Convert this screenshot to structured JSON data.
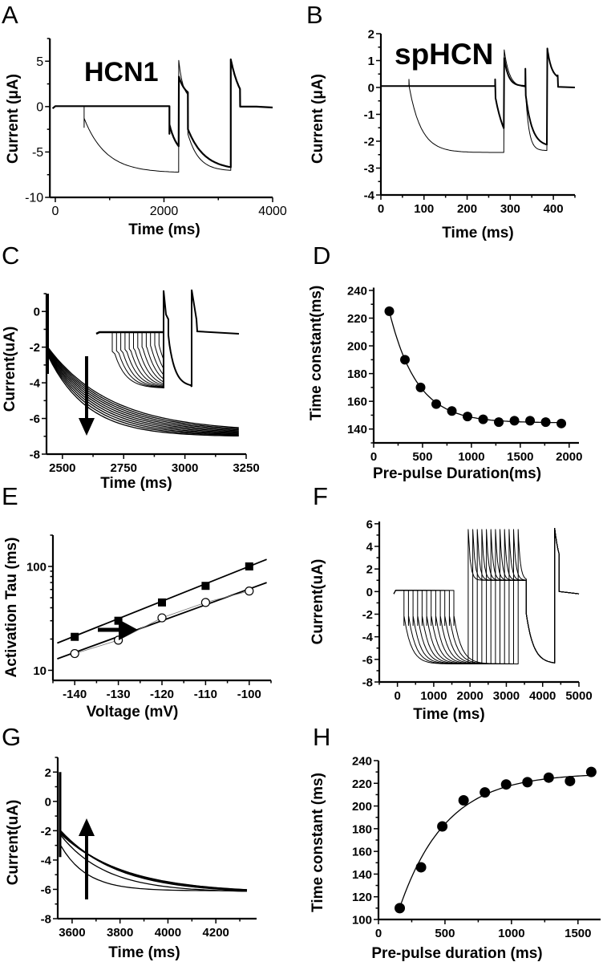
{
  "chart_data": [
    {
      "panel": "A",
      "type": "line",
      "annotation": "HCN1",
      "xlabel": "Time (ms)",
      "ylabel": "Current (μA)",
      "xlim": [
        -100,
        4000
      ],
      "ylim": [
        -10,
        7.5
      ],
      "yscale": "linear",
      "xticks": [
        "0",
        "2000",
        "4000"
      ],
      "xtick_values": [
        0,
        2000,
        4000
      ],
      "yticks": [
        "5",
        "0",
        "-5",
        "-10"
      ],
      "ytick_values": [
        5,
        0,
        -5,
        -10
      ],
      "grid": false
    },
    {
      "panel": "B",
      "type": "line",
      "annotation": "spHCN",
      "xlabel": "Time (ms)",
      "ylabel": "Current (μA)",
      "xlim": [
        0,
        450
      ],
      "ylim": [
        -4,
        2
      ],
      "yscale": "linear",
      "xticks": [
        "0",
        "100",
        "200",
        "300",
        "400"
      ],
      "xtick_values": [
        0,
        100,
        200,
        300,
        400
      ],
      "yticks": [
        "2",
        "1",
        "0",
        "-1",
        "-2",
        "-3",
        "-4"
      ],
      "ytick_values": [
        2,
        1,
        0,
        -1,
        -2,
        -3,
        -4
      ],
      "grid": false
    },
    {
      "panel": "C",
      "type": "line",
      "xlabel": "Time (ms)",
      "ylabel": "Current(uA)",
      "xlim": [
        2435,
        3250
      ],
      "ylim": [
        -8,
        1
      ],
      "yscale": "linear",
      "xticks": [
        "2500",
        "2750",
        "3000",
        "3250"
      ],
      "xtick_values": [
        2500,
        2750,
        3000,
        3250
      ],
      "yticks": [
        "0",
        "-2",
        "-4",
        "-6",
        "-8"
      ],
      "ytick_values": [
        0,
        -2,
        -4,
        -6,
        -8
      ],
      "arrow": "down",
      "inset": true,
      "grid": false
    },
    {
      "panel": "D",
      "type": "scatter",
      "xlabel": "Pre-pulse Duration(ms)",
      "ylabel": "Time constant(ms)",
      "xlim": [
        0,
        2100
      ],
      "ylim": [
        130,
        242
      ],
      "yscale": "linear",
      "xticks": [
        "0",
        "500",
        "1000",
        "1500",
        "2000"
      ],
      "xtick_values": [
        0,
        500,
        1000,
        1500,
        2000
      ],
      "yticks": [
        "240",
        "220",
        "200",
        "180",
        "160",
        "140"
      ],
      "ytick_values": [
        240,
        220,
        200,
        180,
        160,
        140
      ],
      "x": [
        160,
        320,
        480,
        640,
        800,
        960,
        1120,
        1280,
        1440,
        1600,
        1760,
        1920
      ],
      "y": [
        225,
        190,
        170,
        158,
        153,
        149,
        147,
        145,
        146,
        146,
        145,
        144
      ],
      "fit": "exponential",
      "grid": false
    },
    {
      "panel": "E",
      "type": "scatter",
      "xlabel": "Voltage (mV)",
      "ylabel": "Activation Tau (ms)",
      "xlim": [
        -145,
        -95
      ],
      "ylim": [
        8,
        200
      ],
      "yscale": "log",
      "xticks": [
        "-140",
        "-130",
        "-120",
        "-110",
        "-100"
      ],
      "xtick_values": [
        -140,
        -130,
        -120,
        -110,
        -100
      ],
      "yticks": [
        "100",
        "10"
      ],
      "ytick_values": [
        100,
        10
      ],
      "series": [
        {
          "marker": "filled-square",
          "x": [
            -140,
            -130,
            -120,
            -110,
            -100
          ],
          "y": [
            21,
            30,
            45,
            65,
            100
          ]
        },
        {
          "marker": "open-circle",
          "x": [
            -140,
            -130,
            -120,
            -110,
            -100
          ],
          "y": [
            14.5,
            19.5,
            32,
            45,
            58
          ]
        }
      ],
      "arrow": "right",
      "fit": "linear (log scale)",
      "grid": false
    },
    {
      "panel": "F",
      "type": "line",
      "xlabel": "Time (ms)",
      "ylabel": "Current(uA)",
      "xlim": [
        -500,
        5000
      ],
      "ylim": [
        -8,
        6.2
      ],
      "yscale": "linear",
      "xticks": [
        "0",
        "1000",
        "2000",
        "3000",
        "4000",
        "5000"
      ],
      "xtick_values": [
        0,
        1000,
        2000,
        3000,
        4000,
        5000
      ],
      "yticks": [
        "6",
        "4",
        "2",
        "0",
        "-2",
        "-4",
        "-6",
        "-8"
      ],
      "ytick_values": [
        6,
        4,
        2,
        0,
        -2,
        -4,
        -6,
        -8
      ],
      "grid": false
    },
    {
      "panel": "G",
      "type": "line",
      "xlabel": "Time (ms)",
      "ylabel": "Current(uA)",
      "xlim": [
        3540,
        4370
      ],
      "ylim": [
        -8,
        3
      ],
      "yscale": "linear",
      "xticks": [
        "3600",
        "3800",
        "4000",
        "4200"
      ],
      "xtick_values": [
        3600,
        3800,
        4000,
        4200
      ],
      "yticks": [
        "2",
        "0",
        "-2",
        "-4",
        "-6",
        "-8"
      ],
      "ytick_values": [
        2,
        0,
        -2,
        -4,
        -6,
        -8
      ],
      "arrow": "up",
      "grid": false
    },
    {
      "panel": "H",
      "type": "scatter",
      "xlabel": "Pre-pulse duration (ms)",
      "ylabel": "Time constant (ms)",
      "xlim": [
        0,
        1670
      ],
      "ylim": [
        100,
        240
      ],
      "yscale": "linear",
      "xticks": [
        "0",
        "500",
        "1000",
        "1500"
      ],
      "xtick_values": [
        0,
        500,
        1000,
        1500
      ],
      "yticks": [
        "240",
        "220",
        "200",
        "180",
        "160",
        "140",
        "120",
        "100"
      ],
      "ytick_values": [
        240,
        220,
        200,
        180,
        160,
        140,
        120,
        100
      ],
      "x": [
        160,
        320,
        480,
        640,
        800,
        960,
        1120,
        1280,
        1440,
        1600
      ],
      "y": [
        110,
        146,
        182,
        205,
        212,
        219,
        221,
        225,
        222,
        230
      ],
      "fit": "exponential",
      "grid": false
    }
  ]
}
